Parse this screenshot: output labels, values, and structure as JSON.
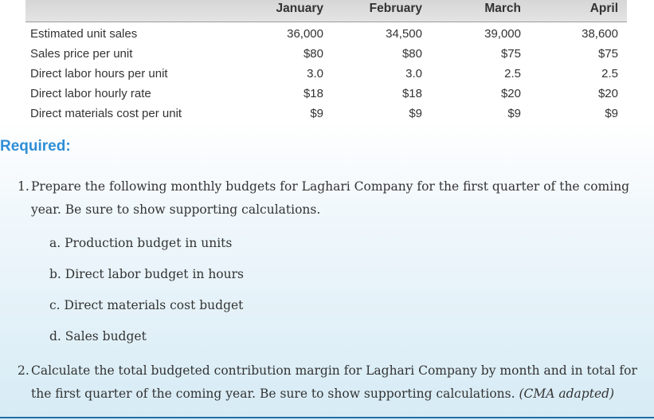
{
  "table": {
    "columns": [
      "January",
      "February",
      "March",
      "April"
    ],
    "rows": [
      {
        "label": "Estimated unit sales",
        "values": [
          "36,000",
          "34,500",
          "39,000",
          "38,600"
        ]
      },
      {
        "label": "Sales price per unit",
        "values": [
          "$80",
          "$80",
          "$75",
          "$75"
        ]
      },
      {
        "label": "Direct labor hours per unit",
        "values": [
          "3.0",
          "3.0",
          "2.5",
          "2.5"
        ]
      },
      {
        "label": "Direct labor hourly rate",
        "values": [
          "$18",
          "$18",
          "$20",
          "$20"
        ]
      },
      {
        "label": "Direct materials cost per unit",
        "values": [
          "$9",
          "$9",
          "$9",
          "$9"
        ]
      }
    ]
  },
  "required": {
    "heading": "Required:",
    "q1_num": "1.",
    "q1_text": "Prepare the following monthly budgets for Laghari Company for the first quarter of the coming year. Be sure to show supporting calculations.",
    "subitems": [
      "a. Production budget in units",
      "b. Direct labor budget in hours",
      "c. Direct materials cost budget",
      "d. Sales budget"
    ],
    "q2_num": "2.",
    "q2_text": "Calculate the total budgeted contribution margin for Laghari Company by month and in total for the first quarter of the coming year. Be sure to show supporting calculations.",
    "q2_citation": "(CMA adapted)"
  }
}
